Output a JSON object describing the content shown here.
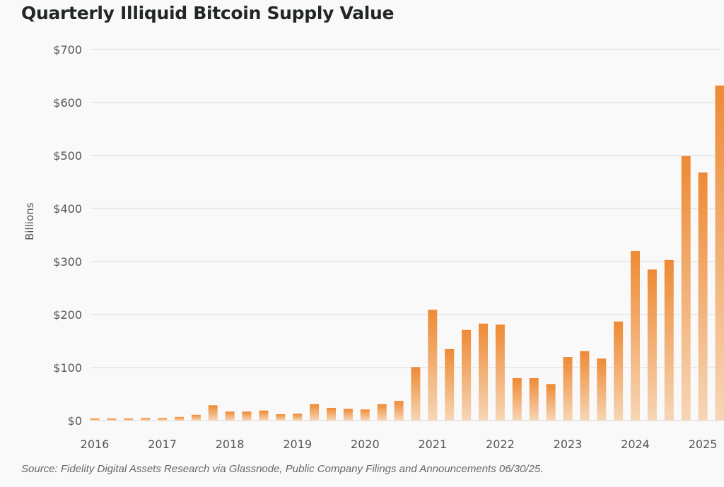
{
  "chart_data": {
    "type": "bar",
    "title": "Quarterly Illiquid Bitcoin Supply Value",
    "xlabel": "",
    "ylabel": "Billions",
    "ylim": [
      0,
      700
    ],
    "yticks": [
      0,
      100,
      200,
      300,
      400,
      500,
      600,
      700
    ],
    "ytick_labels": [
      "$0",
      "$100",
      "$200",
      "$300",
      "$400",
      "$500",
      "$600",
      "$700"
    ],
    "xtick_labels": [
      "2016",
      "2017",
      "2018",
      "2019",
      "2020",
      "2021",
      "2022",
      "2023",
      "2024",
      "2025"
    ],
    "grid": true,
    "bar_color_top": "#ee8a35",
    "bar_color_bottom": "#f6d6b6",
    "categories": [
      "2016 Q1",
      "2016 Q2",
      "2016 Q3",
      "2016 Q4",
      "2017 Q1",
      "2017 Q2",
      "2017 Q3",
      "2017 Q4",
      "2018 Q1",
      "2018 Q2",
      "2018 Q3",
      "2018 Q4",
      "2019 Q1",
      "2019 Q2",
      "2019 Q3",
      "2019 Q4",
      "2020 Q1",
      "2020 Q2",
      "2020 Q3",
      "2020 Q4",
      "2021 Q1",
      "2021 Q2",
      "2021 Q3",
      "2021 Q4",
      "2022 Q1",
      "2022 Q2",
      "2022 Q3",
      "2022 Q4",
      "2023 Q1",
      "2023 Q2",
      "2023 Q3",
      "2023 Q4",
      "2024 Q1",
      "2024 Q2",
      "2024 Q3",
      "2024 Q4",
      "2025 Q1",
      "2025 Q2"
    ],
    "values": [
      4,
      4,
      4,
      5,
      5,
      7,
      11,
      29,
      17,
      17,
      19,
      12,
      13,
      31,
      24,
      22,
      21,
      31,
      37,
      101,
      209,
      135,
      171,
      183,
      181,
      80,
      80,
      69,
      120,
      131,
      117,
      187,
      320,
      285,
      303,
      499,
      468,
      632
    ],
    "source": "Source: Fidelity Digital Assets Research via Glassnode, Public Company Filings and Announcements 06/30/25."
  }
}
